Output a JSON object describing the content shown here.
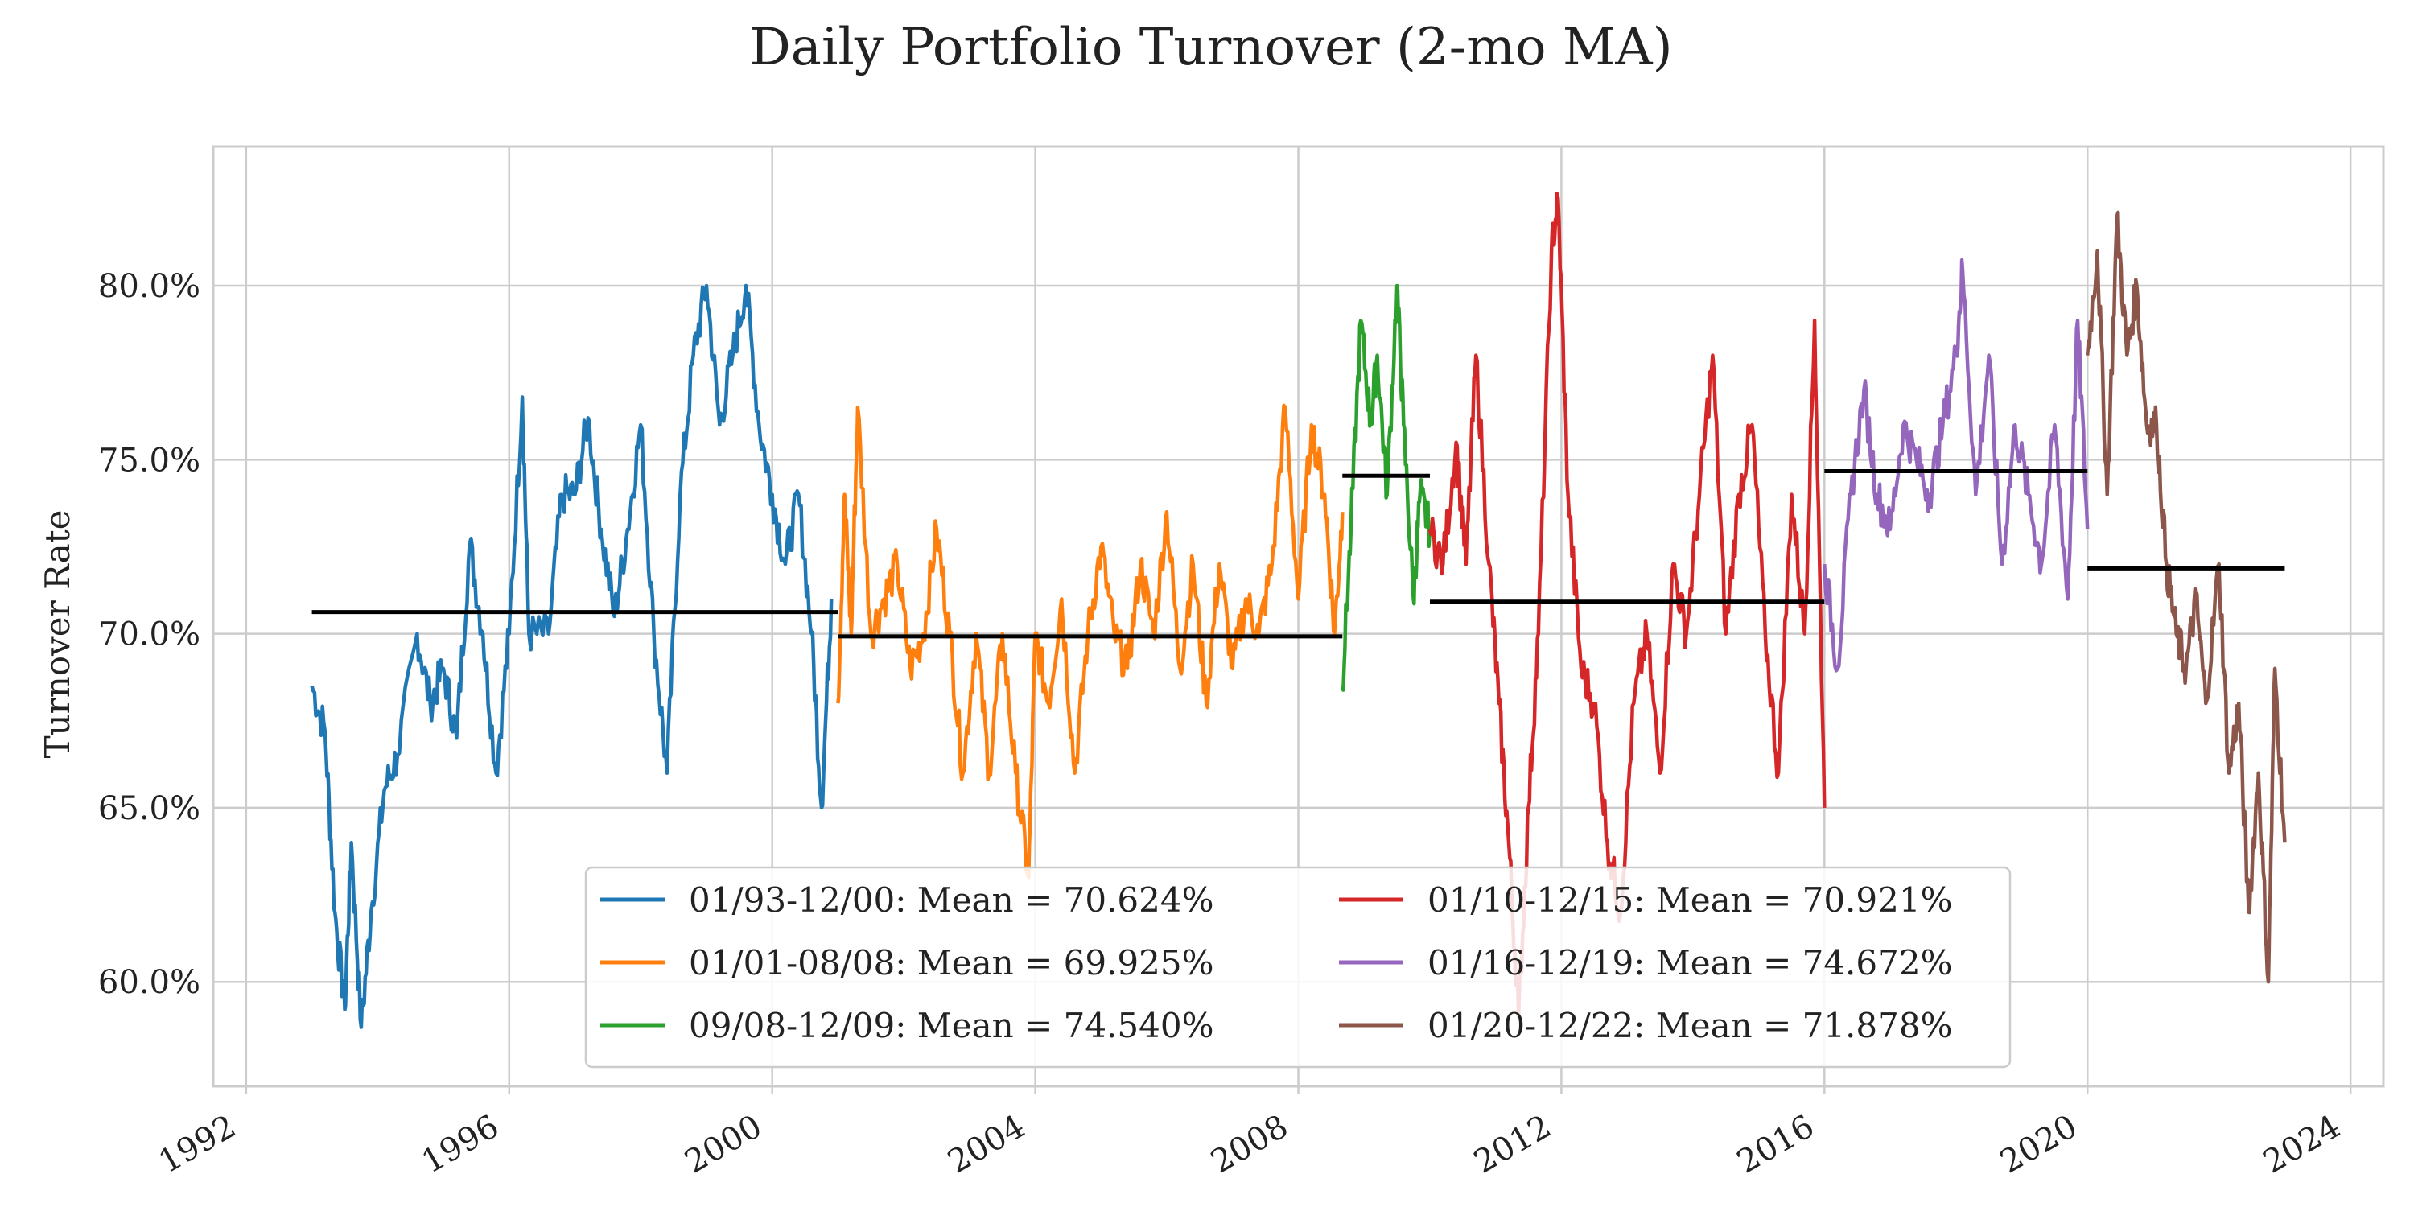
{
  "chart_data": {
    "type": "line",
    "title": "Daily Portfolio Turnover (2-mo MA)",
    "xlabel": "",
    "ylabel": "Turnover Rate",
    "xlim": [
      1991.5,
      2024.5
    ],
    "ylim": [
      0.57,
      0.84
    ],
    "x_ticks": [
      1992,
      1996,
      2000,
      2004,
      2008,
      2012,
      2016,
      2020,
      2024
    ],
    "x_tick_labels": [
      "1992",
      "1996",
      "2000",
      "2004",
      "2008",
      "2012",
      "2016",
      "2020",
      "2024"
    ],
    "y_ticks": [
      0.6,
      0.65,
      0.7,
      0.75,
      0.8
    ],
    "y_tick_labels": [
      "60.0%",
      "65.0%",
      "70.0%",
      "75.0%",
      "80.0%"
    ],
    "grid": true,
    "legend_position": "lower-center",
    "series": [
      {
        "name": "01/93-12/00: Mean = 70.624%",
        "color": "#1f77b4",
        "mean": 0.70624,
        "start": 1993.0,
        "end": 2001.0,
        "points": [
          [
            1993.0,
            0.685
          ],
          [
            1993.2,
            0.672
          ],
          [
            1993.35,
            0.62
          ],
          [
            1993.5,
            0.592
          ],
          [
            1993.6,
            0.64
          ],
          [
            1993.75,
            0.587
          ],
          [
            1993.9,
            0.62
          ],
          [
            1994.1,
            0.655
          ],
          [
            1994.3,
            0.665
          ],
          [
            1994.6,
            0.7
          ],
          [
            1994.8,
            0.68
          ],
          [
            1995.0,
            0.69
          ],
          [
            1995.2,
            0.67
          ],
          [
            1995.4,
            0.726
          ],
          [
            1995.6,
            0.7
          ],
          [
            1995.8,
            0.66
          ],
          [
            1996.0,
            0.7
          ],
          [
            1996.2,
            0.768
          ],
          [
            1996.3,
            0.7
          ],
          [
            1996.6,
            0.7
          ],
          [
            1996.8,
            0.74
          ],
          [
            1997.0,
            0.74
          ],
          [
            1997.2,
            0.762
          ],
          [
            1997.4,
            0.73
          ],
          [
            1997.6,
            0.705
          ],
          [
            1997.8,
            0.73
          ],
          [
            1998.0,
            0.76
          ],
          [
            1998.2,
            0.7
          ],
          [
            1998.4,
            0.66
          ],
          [
            1998.6,
            0.74
          ],
          [
            1998.8,
            0.78
          ],
          [
            1999.0,
            0.8
          ],
          [
            1999.2,
            0.76
          ],
          [
            1999.4,
            0.78
          ],
          [
            1999.6,
            0.8
          ],
          [
            1999.8,
            0.76
          ],
          [
            2000.0,
            0.74
          ],
          [
            2000.2,
            0.72
          ],
          [
            2000.4,
            0.74
          ],
          [
            2000.6,
            0.7
          ],
          [
            2000.75,
            0.65
          ],
          [
            2000.9,
            0.71
          ]
        ]
      },
      {
        "name": "01/01-08/08: Mean = 69.925%",
        "color": "#ff7f0e",
        "mean": 0.69925,
        "start": 2001.0,
        "end": 2008.67,
        "points": [
          [
            2001.0,
            0.68
          ],
          [
            2001.1,
            0.74
          ],
          [
            2001.2,
            0.7
          ],
          [
            2001.3,
            0.765
          ],
          [
            2001.5,
            0.7
          ],
          [
            2001.7,
            0.71
          ],
          [
            2001.9,
            0.72
          ],
          [
            2002.1,
            0.69
          ],
          [
            2002.3,
            0.7
          ],
          [
            2002.5,
            0.73
          ],
          [
            2002.7,
            0.7
          ],
          [
            2002.9,
            0.66
          ],
          [
            2003.1,
            0.7
          ],
          [
            2003.3,
            0.66
          ],
          [
            2003.5,
            0.7
          ],
          [
            2003.7,
            0.66
          ],
          [
            2003.9,
            0.63
          ],
          [
            2004.0,
            0.7
          ],
          [
            2004.2,
            0.68
          ],
          [
            2004.4,
            0.71
          ],
          [
            2004.6,
            0.66
          ],
          [
            2004.8,
            0.7
          ],
          [
            2005.0,
            0.725
          ],
          [
            2005.2,
            0.7
          ],
          [
            2005.4,
            0.69
          ],
          [
            2005.6,
            0.72
          ],
          [
            2005.8,
            0.7
          ],
          [
            2006.0,
            0.735
          ],
          [
            2006.2,
            0.69
          ],
          [
            2006.4,
            0.72
          ],
          [
            2006.6,
            0.68
          ],
          [
            2006.8,
            0.72
          ],
          [
            2007.0,
            0.69
          ],
          [
            2007.2,
            0.71
          ],
          [
            2007.4,
            0.7
          ],
          [
            2007.6,
            0.72
          ],
          [
            2007.8,
            0.765
          ],
          [
            2008.0,
            0.71
          ],
          [
            2008.2,
            0.76
          ],
          [
            2008.4,
            0.74
          ],
          [
            2008.55,
            0.7
          ],
          [
            2008.67,
            0.735
          ]
        ]
      },
      {
        "name": "09/08-12/09: Mean = 74.540%",
        "color": "#2ca02c",
        "mean": 0.7454,
        "start": 2008.67,
        "end": 2010.0,
        "points": [
          [
            2008.67,
            0.685
          ],
          [
            2008.8,
            0.73
          ],
          [
            2008.95,
            0.79
          ],
          [
            2009.1,
            0.76
          ],
          [
            2009.2,
            0.78
          ],
          [
            2009.35,
            0.74
          ],
          [
            2009.5,
            0.8
          ],
          [
            2009.6,
            0.76
          ],
          [
            2009.75,
            0.71
          ],
          [
            2009.85,
            0.74
          ],
          [
            2010.0,
            0.73
          ]
        ]
      },
      {
        "name": "01/10-12/15: Mean = 70.921%",
        "color": "#d62728",
        "mean": 0.70921,
        "start": 2010.0,
        "end": 2016.0,
        "points": [
          [
            2010.0,
            0.73
          ],
          [
            2010.2,
            0.72
          ],
          [
            2010.4,
            0.755
          ],
          [
            2010.55,
            0.72
          ],
          [
            2010.7,
            0.78
          ],
          [
            2010.9,
            0.72
          ],
          [
            2011.05,
            0.68
          ],
          [
            2011.2,
            0.64
          ],
          [
            2011.35,
            0.59
          ],
          [
            2011.5,
            0.65
          ],
          [
            2011.65,
            0.7
          ],
          [
            2011.85,
            0.81
          ],
          [
            2011.95,
            0.825
          ],
          [
            2012.1,
            0.74
          ],
          [
            2012.3,
            0.69
          ],
          [
            2012.5,
            0.68
          ],
          [
            2012.7,
            0.64
          ],
          [
            2012.9,
            0.62
          ],
          [
            2013.1,
            0.68
          ],
          [
            2013.3,
            0.7
          ],
          [
            2013.5,
            0.66
          ],
          [
            2013.7,
            0.72
          ],
          [
            2013.9,
            0.7
          ],
          [
            2014.1,
            0.74
          ],
          [
            2014.3,
            0.78
          ],
          [
            2014.5,
            0.7
          ],
          [
            2014.7,
            0.74
          ],
          [
            2014.9,
            0.76
          ],
          [
            2015.1,
            0.7
          ],
          [
            2015.3,
            0.66
          ],
          [
            2015.5,
            0.74
          ],
          [
            2015.7,
            0.7
          ],
          [
            2015.85,
            0.79
          ],
          [
            2016.0,
            0.65
          ]
        ]
      },
      {
        "name": "01/16-12/19: Mean = 74.672%",
        "color": "#9467bd",
        "mean": 0.74672,
        "start": 2016.0,
        "end": 2020.0,
        "points": [
          [
            2016.0,
            0.72
          ],
          [
            2016.2,
            0.69
          ],
          [
            2016.4,
            0.74
          ],
          [
            2016.6,
            0.77
          ],
          [
            2016.8,
            0.74
          ],
          [
            2017.0,
            0.73
          ],
          [
            2017.2,
            0.76
          ],
          [
            2017.4,
            0.75
          ],
          [
            2017.6,
            0.74
          ],
          [
            2017.8,
            0.76
          ],
          [
            2018.0,
            0.78
          ],
          [
            2018.1,
            0.805
          ],
          [
            2018.3,
            0.74
          ],
          [
            2018.5,
            0.78
          ],
          [
            2018.7,
            0.72
          ],
          [
            2018.9,
            0.76
          ],
          [
            2019.1,
            0.74
          ],
          [
            2019.3,
            0.72
          ],
          [
            2019.5,
            0.76
          ],
          [
            2019.7,
            0.71
          ],
          [
            2019.85,
            0.79
          ],
          [
            2020.0,
            0.73
          ]
        ]
      },
      {
        "name": "01/20-12/22: Mean = 71.878%",
        "color": "#8c564b",
        "mean": 0.71878,
        "start": 2020.0,
        "end": 2023.0,
        "points": [
          [
            2020.0,
            0.78
          ],
          [
            2020.15,
            0.81
          ],
          [
            2020.3,
            0.74
          ],
          [
            2020.45,
            0.82
          ],
          [
            2020.6,
            0.78
          ],
          [
            2020.75,
            0.8
          ],
          [
            2020.9,
            0.76
          ],
          [
            2021.05,
            0.76
          ],
          [
            2021.2,
            0.72
          ],
          [
            2021.35,
            0.7
          ],
          [
            2021.5,
            0.69
          ],
          [
            2021.65,
            0.71
          ],
          [
            2021.8,
            0.68
          ],
          [
            2022.0,
            0.72
          ],
          [
            2022.15,
            0.66
          ],
          [
            2022.3,
            0.68
          ],
          [
            2022.45,
            0.62
          ],
          [
            2022.6,
            0.66
          ],
          [
            2022.75,
            0.6
          ],
          [
            2022.85,
            0.69
          ],
          [
            2023.0,
            0.64
          ]
        ]
      }
    ]
  }
}
